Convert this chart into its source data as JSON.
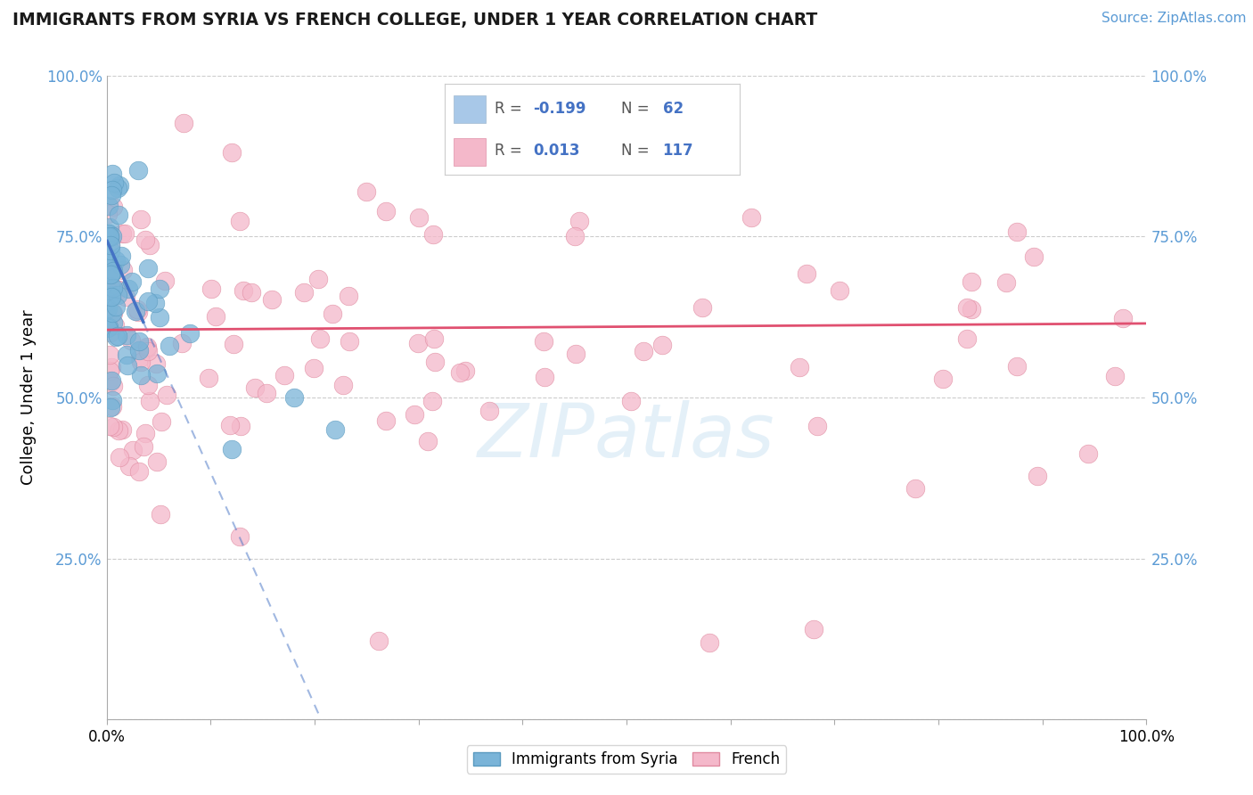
{
  "title": "IMMIGRANTS FROM SYRIA VS FRENCH COLLEGE, UNDER 1 YEAR CORRELATION CHART",
  "source": "Source: ZipAtlas.com",
  "ylabel": "College, Under 1 year",
  "syria_color": "#7ab4d8",
  "syria_edge_color": "#5a9abf",
  "french_color": "#f4b8ca",
  "french_edge_color": "#e08aa0",
  "syria_line_color": "#4472c4",
  "french_line_color": "#e05070",
  "watermark": "ZIPatlas",
  "background_color": "#ffffff",
  "grid_color": "#cccccc",
  "legend_r1": "-0.199",
  "legend_n1": "62",
  "legend_r2": "0.013",
  "legend_n2": "117",
  "legend_color1": "#a8c8e8",
  "legend_color2": "#f4b8ca",
  "text_color_blue": "#4472c4",
  "text_color_gray": "#888888",
  "source_color": "#5b9bd5"
}
